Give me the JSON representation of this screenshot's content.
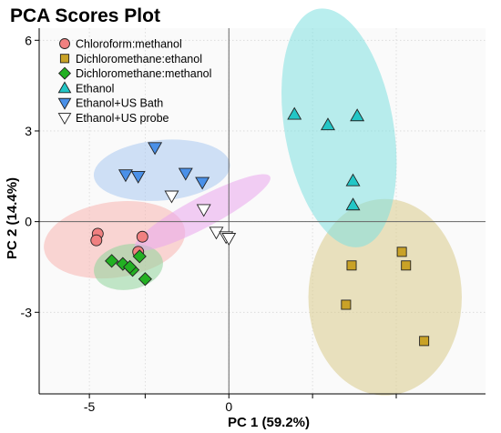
{
  "chart_data": {
    "type": "scatter",
    "title": "PCA Scores Plot",
    "xlabel": "PC 1 (59.2%)",
    "ylabel": "PC 2 (14.4%)",
    "xlim": [
      -6.8,
      9.2
    ],
    "ylim": [
      -5.7,
      6.4
    ],
    "xticks": [
      -5,
      -3,
      0,
      3,
      6
    ],
    "xtick_labels": [
      "-5",
      "",
      "0",
      "",
      ""
    ],
    "yticks": [
      -3,
      0,
      3,
      6
    ],
    "ytick_labels": [
      "-3",
      "0",
      "3",
      "6"
    ],
    "grid": true,
    "legend_position": "top-left",
    "series": [
      {
        "name": "Chloroform:methanol",
        "marker": "circle",
        "color": "#f08080",
        "ellipse_color": "#f8b4b0",
        "points": [
          [
            -4.7,
            -0.4
          ],
          [
            -4.75,
            -0.62
          ],
          [
            -3.1,
            -0.5
          ],
          [
            -3.25,
            -1.0
          ]
        ],
        "ellipse": {
          "cx": -4.1,
          "cy": -0.6,
          "rx": 2.55,
          "ry": 1.25,
          "angle": -8
        }
      },
      {
        "name": "Dichloromethane:ethanol",
        "marker": "square",
        "color": "#c9a227",
        "ellipse_color": "#d9ca8a",
        "points": [
          [
            6.2,
            -1.0
          ],
          [
            4.4,
            -1.45
          ],
          [
            6.35,
            -1.45
          ],
          [
            4.2,
            -2.75
          ],
          [
            7.0,
            -3.95
          ]
        ],
        "ellipse": {
          "cx": 5.6,
          "cy": -2.5,
          "rx": 2.75,
          "ry": 3.25,
          "angle": 0
        }
      },
      {
        "name": "Dichloromethane:methanol",
        "marker": "diamond",
        "color": "#22b022",
        "ellipse_color": "#8fd49a",
        "points": [
          [
            -4.2,
            -1.3
          ],
          [
            -3.8,
            -1.4
          ],
          [
            -3.45,
            -1.6
          ],
          [
            -3.2,
            -1.15
          ],
          [
            -3.55,
            -1.5
          ],
          [
            -3.0,
            -1.9
          ]
        ],
        "ellipse": {
          "cx": -3.6,
          "cy": -1.5,
          "rx": 1.25,
          "ry": 0.75,
          "angle": -10
        }
      },
      {
        "name": "Ethanol",
        "marker": "triangle-up",
        "color": "#22c6c6",
        "ellipse_color": "#7fe0e0",
        "points": [
          [
            2.35,
            3.55
          ],
          [
            3.55,
            3.2
          ],
          [
            4.6,
            3.5
          ],
          [
            4.45,
            1.35
          ],
          [
            4.45,
            0.55
          ]
        ],
        "ellipse": {
          "cx": 3.95,
          "cy": 3.1,
          "rx": 1.95,
          "ry": 4.0,
          "angle": -10
        }
      },
      {
        "name": "Ethanol+US Bath",
        "marker": "triangle-down",
        "color": "#4a90e8",
        "ellipse_color": "#a9c8f0",
        "points": [
          [
            -2.65,
            2.45
          ],
          [
            -3.7,
            1.55
          ],
          [
            -3.25,
            1.5
          ],
          [
            -1.55,
            1.6
          ],
          [
            -0.95,
            1.3
          ]
        ],
        "ellipse": {
          "cx": -2.4,
          "cy": 1.7,
          "rx": 2.45,
          "ry": 1.0,
          "angle": -5
        }
      },
      {
        "name": "Ethanol+US probe",
        "marker": "triangle-down",
        "color": "#ffffff",
        "ellipse_color": "#e9a5ec",
        "points": [
          [
            -2.05,
            0.85
          ],
          [
            -0.9,
            0.4
          ],
          [
            -0.45,
            -0.35
          ],
          [
            -0.1,
            -0.5
          ],
          [
            0.0,
            -0.55
          ]
        ],
        "ellipse": {
          "cx": -0.95,
          "cy": 0.3,
          "rx": 2.75,
          "ry": 0.5,
          "angle": -28
        }
      }
    ]
  }
}
